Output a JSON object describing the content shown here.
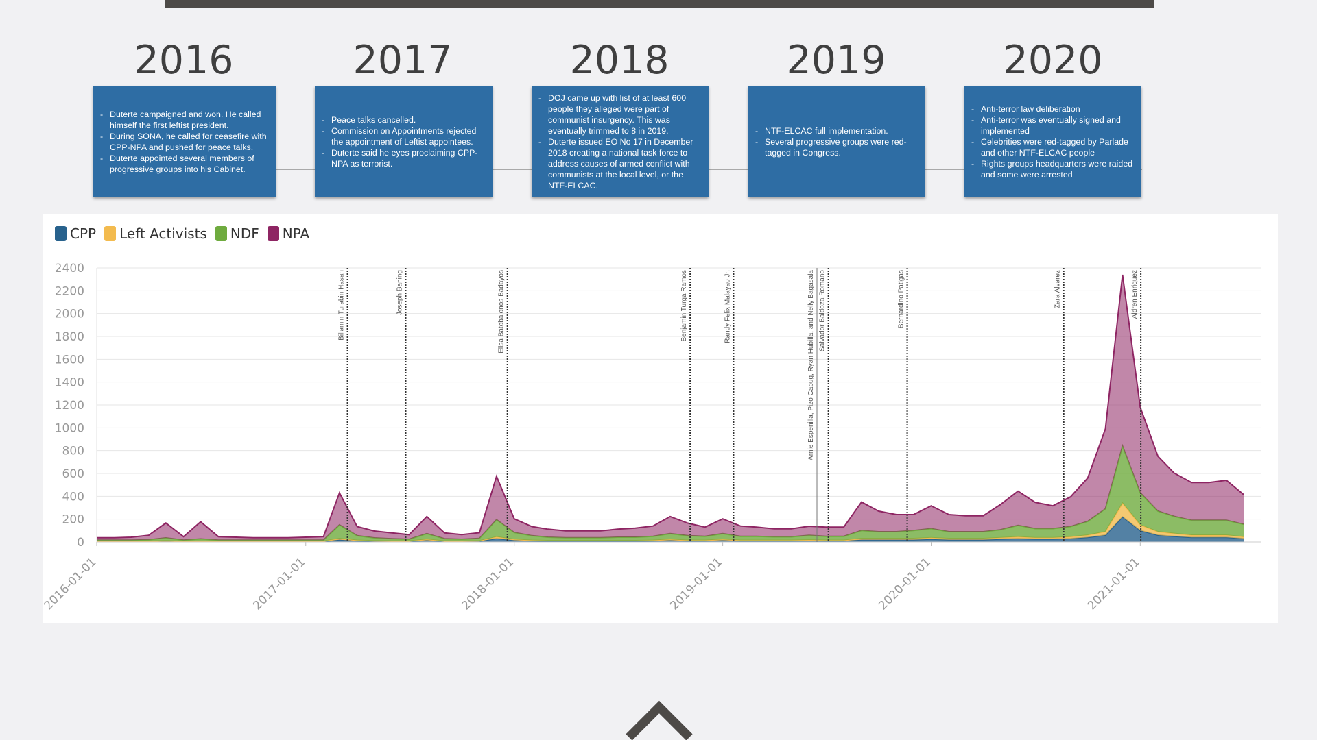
{
  "timeline": [
    {
      "year": "2016",
      "points": [
        "Duterte campaigned and won. He called himself the first leftist president.",
        "During SONA, he called for ceasefire with CPP-NPA and pushed for peace talks.",
        "Duterte appointed several members of progressive groups into his Cabinet."
      ]
    },
    {
      "year": "2017",
      "points": [
        "Peace talks cancelled.",
        "Commission on Appointments rejected the appointment of Leftist appointees.",
        "Duterte said he eyes proclaiming CPP-NPA as terrorist."
      ]
    },
    {
      "year": "2018",
      "points": [
        "DOJ came up with list of at least 600 people they alleged were part of communist insurgency. This was eventually trimmed to 8 in 2019.",
        "Duterte issued EO No 17 in December 2018  creating a national task force to address causes of armed conflict with communists at the local level, or the NTF-ELCAC."
      ]
    },
    {
      "year": "2019",
      "points": [
        "NTF-ELCAC full implementation.",
        "Several progressive groups were red-tagged in Congress."
      ]
    },
    {
      "year": "2020",
      "points": [
        "Anti-terror law deliberation",
        "Anti-terror was eventually signed and implemented",
        "Celebrities were red-tagged by Parlade and other NTF-ELCAC people",
        "Rights groups headquarters were raided and some were arrested"
      ]
    }
  ],
  "chart_data": {
    "type": "area",
    "stacked": true,
    "title": "",
    "xlabel": "",
    "ylabel": "",
    "ylim": [
      0,
      2400
    ],
    "xlim": [
      "2016-01-01",
      "2021-07-31"
    ],
    "grid": true,
    "legend_position": "top-left",
    "y_ticks": [
      0,
      200,
      400,
      600,
      800,
      1000,
      1200,
      1400,
      1600,
      1800,
      2000,
      2200,
      2400
    ],
    "x_ticks": [
      "2016-01-01",
      "2017-01-01",
      "2018-01-01",
      "2019-01-01",
      "2020-01-01",
      "2021-01-01"
    ],
    "x": [
      "2016-01-01",
      "2016-02-01",
      "2016-03-01",
      "2016-04-01",
      "2016-05-01",
      "2016-06-01",
      "2016-07-01",
      "2016-08-01",
      "2016-09-01",
      "2016-10-01",
      "2016-11-01",
      "2016-12-01",
      "2017-01-01",
      "2017-02-01",
      "2017-03-01",
      "2017-04-01",
      "2017-05-01",
      "2017-06-01",
      "2017-07-01",
      "2017-08-01",
      "2017-09-01",
      "2017-10-01",
      "2017-11-01",
      "2017-12-01",
      "2018-01-01",
      "2018-02-01",
      "2018-03-01",
      "2018-04-01",
      "2018-05-01",
      "2018-06-01",
      "2018-07-01",
      "2018-08-01",
      "2018-09-01",
      "2018-10-01",
      "2018-11-01",
      "2018-12-01",
      "2019-01-01",
      "2019-02-01",
      "2019-03-01",
      "2019-04-01",
      "2019-05-01",
      "2019-06-01",
      "2019-07-01",
      "2019-08-01",
      "2019-09-01",
      "2019-10-01",
      "2019-11-01",
      "2019-12-01",
      "2020-01-01",
      "2020-02-01",
      "2020-03-01",
      "2020-04-01",
      "2020-05-01",
      "2020-06-01",
      "2020-07-01",
      "2020-08-01",
      "2020-09-01",
      "2020-10-01",
      "2020-11-01",
      "2020-12-01",
      "2021-01-01",
      "2021-02-01",
      "2021-03-01",
      "2021-04-01",
      "2021-05-01",
      "2021-06-01",
      "2021-07-01"
    ],
    "series": [
      {
        "name": "CPP",
        "color": "#28628d",
        "values": [
          5,
          5,
          5,
          5,
          8,
          5,
          5,
          5,
          5,
          5,
          5,
          5,
          5,
          5,
          20,
          10,
          8,
          6,
          6,
          15,
          6,
          6,
          8,
          30,
          15,
          10,
          8,
          8,
          8,
          8,
          8,
          8,
          10,
          15,
          10,
          10,
          15,
          10,
          10,
          10,
          10,
          12,
          10,
          10,
          20,
          20,
          20,
          20,
          25,
          20,
          20,
          20,
          25,
          30,
          25,
          25,
          30,
          40,
          60,
          220,
          100,
          60,
          50,
          40,
          40,
          40,
          30
        ]
      },
      {
        "name": "Left Activists",
        "color": "#f3bb4f",
        "values": [
          2,
          2,
          2,
          2,
          3,
          2,
          2,
          2,
          2,
          2,
          2,
          2,
          2,
          2,
          10,
          5,
          3,
          3,
          3,
          8,
          3,
          3,
          3,
          15,
          8,
          5,
          4,
          4,
          4,
          4,
          4,
          4,
          5,
          8,
          5,
          5,
          8,
          5,
          5,
          5,
          5,
          6,
          5,
          5,
          10,
          10,
          10,
          10,
          12,
          10,
          10,
          10,
          12,
          15,
          12,
          12,
          15,
          20,
          30,
          120,
          50,
          30,
          25,
          20,
          20,
          20,
          15
        ]
      },
      {
        "name": "NDF",
        "color": "#6fab3f",
        "values": [
          10,
          10,
          10,
          12,
          25,
          10,
          20,
          10,
          10,
          10,
          10,
          10,
          10,
          10,
          120,
          40,
          25,
          20,
          15,
          50,
          20,
          15,
          20,
          150,
          60,
          40,
          30,
          25,
          25,
          25,
          30,
          30,
          35,
          50,
          40,
          35,
          50,
          35,
          35,
          30,
          30,
          40,
          35,
          35,
          70,
          60,
          60,
          70,
          80,
          60,
          60,
          60,
          70,
          100,
          80,
          80,
          90,
          120,
          200,
          500,
          280,
          180,
          150,
          130,
          130,
          130,
          110
        ]
      },
      {
        "name": "NPA",
        "color": "#8e2563",
        "values": [
          20,
          20,
          25,
          40,
          130,
          30,
          150,
          30,
          25,
          20,
          20,
          20,
          25,
          30,
          280,
          80,
          60,
          50,
          40,
          150,
          50,
          40,
          50,
          380,
          120,
          80,
          70,
          60,
          60,
          60,
          70,
          80,
          90,
          150,
          110,
          80,
          130,
          90,
          80,
          70,
          70,
          80,
          80,
          80,
          250,
          180,
          150,
          140,
          200,
          150,
          140,
          140,
          220,
          300,
          230,
          200,
          260,
          380,
          700,
          1500,
          750,
          480,
          380,
          330,
          330,
          350,
          260
        ]
      }
    ],
    "annotations": [
      {
        "date": "2017-03-15",
        "label": "Billamin Turabin Hasan"
      },
      {
        "date": "2017-06-25",
        "label": "Joseph Baning"
      },
      {
        "date": "2017-12-20",
        "label": "Elisa Batobalonos Badayos"
      },
      {
        "date": "2018-11-05",
        "label": "Benjamin Turga Ramos"
      },
      {
        "date": "2019-01-20",
        "label": "Randy Felix Malayao Jr."
      },
      {
        "date": "2019-06-15",
        "label": "Arnie Espenilla, Pizo Cabug, Ryan Hubilla, and Nelly Bagasala"
      },
      {
        "date": "2019-07-05",
        "label": "Salvador Baldoza Romano"
      },
      {
        "date": "2019-11-20",
        "label": "Bernardino Patigas"
      },
      {
        "date": "2020-08-20",
        "label": "Zara Alvarez"
      },
      {
        "date": "2021-01-02",
        "label": "Aldren Enriquez"
      }
    ]
  }
}
